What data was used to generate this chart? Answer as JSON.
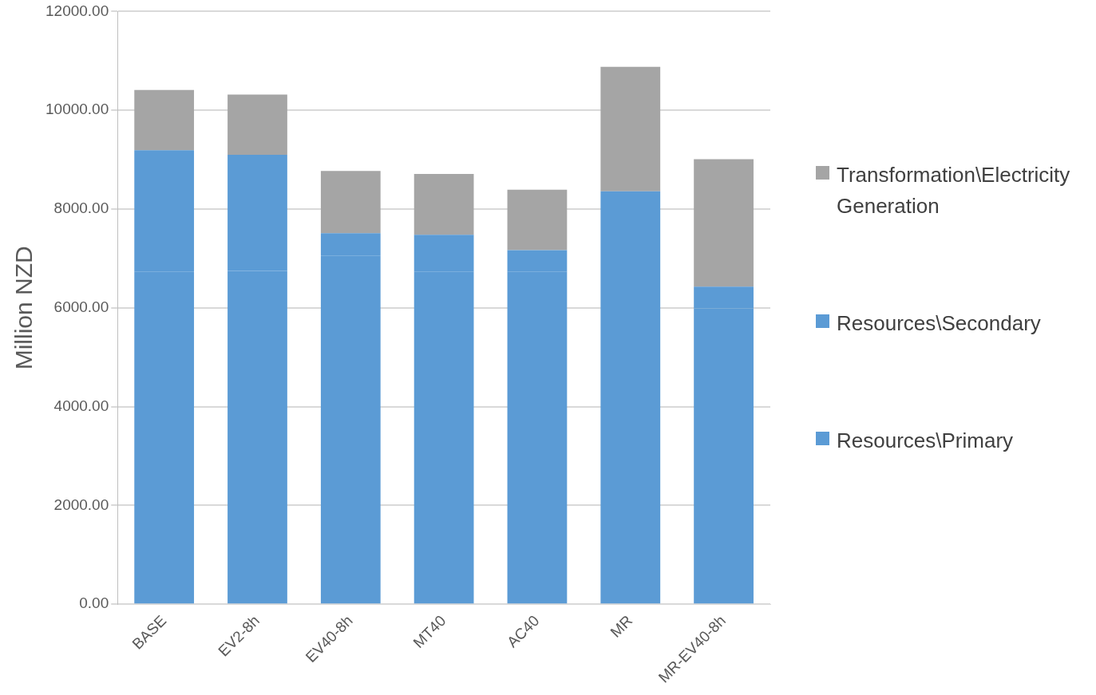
{
  "chart_data": {
    "type": "bar",
    "stacked": true,
    "ylabel": "Million NZD",
    "categories": [
      "BASE",
      "EV2-8h",
      "EV40-8h",
      "MT40",
      "AC40",
      "MR",
      "MR-EV40-8h"
    ],
    "series": [
      {
        "name": "Resources\\Primary",
        "color": "#5b9bd5",
        "values": [
          6730,
          6750,
          7060,
          6730,
          6730,
          5900,
          5990
        ]
      },
      {
        "name": "Resources\\Secondary",
        "color": "#5b9bd5",
        "values": [
          2460,
          2350,
          450,
          750,
          440,
          2460,
          440
        ]
      },
      {
        "name": "Transformation\\Electricity Generation",
        "color": "#a5a5a5",
        "values": [
          1220,
          1220,
          1260,
          1230,
          1220,
          2520,
          2580
        ]
      }
    ],
    "ylim": [
      0,
      12000
    ],
    "yticks": [
      {
        "value": 0,
        "label": "0.00"
      },
      {
        "value": 2000,
        "label": "2000.00"
      },
      {
        "value": 4000,
        "label": "4000.00"
      },
      {
        "value": 6000,
        "label": "6000.00"
      },
      {
        "value": 8000,
        "label": "8000.00"
      },
      {
        "value": 10000,
        "label": "10000.00"
      },
      {
        "value": 12000,
        "label": "12000.00"
      }
    ],
    "grid": "y",
    "legend": "right"
  }
}
